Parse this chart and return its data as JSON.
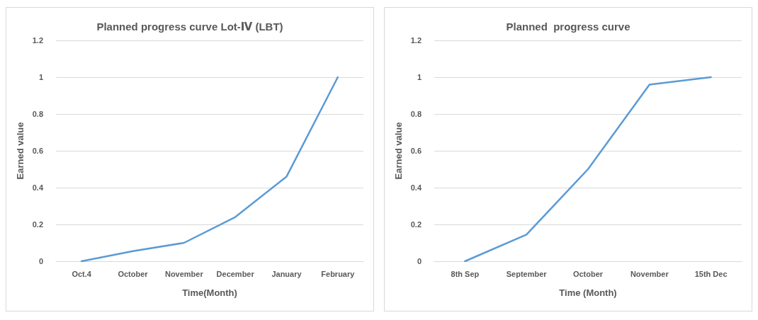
{
  "chart_data": [
    {
      "type": "line",
      "title": "Planned progress curve Lot-Ⅳ (LBT)",
      "xlabel": "Time(Month)",
      "ylabel": "Earned value",
      "categories": [
        "Oct.4",
        "October",
        "November",
        "December",
        "January",
        "February"
      ],
      "series": [
        {
          "color": "#5b9bd5",
          "values": [
            0,
            0.055,
            0.1,
            0.24,
            0.46,
            1
          ]
        }
      ],
      "ylim": [
        0,
        1.2
      ],
      "yticks": [
        0,
        0.2,
        0.4,
        0.6,
        0.8,
        1,
        1.2
      ],
      "grid": "y",
      "marker": "none",
      "line_style": "solid"
    },
    {
      "type": "line",
      "title": "Planned  progress curve",
      "xlabel": "Time (Month)",
      "ylabel": "Earned value",
      "categories": [
        "8th Sep",
        "September",
        "October",
        "November",
        "15th Dec"
      ],
      "series": [
        {
          "color": "#5b9bd5",
          "values": [
            0,
            0.145,
            0.5,
            0.96,
            1
          ]
        }
      ],
      "ylim": [
        0,
        1.2
      ],
      "yticks": [
        0,
        0.2,
        0.4,
        0.6,
        0.8,
        1,
        1.2
      ],
      "grid": "y",
      "marker": "none",
      "line_style": "solid"
    }
  ]
}
